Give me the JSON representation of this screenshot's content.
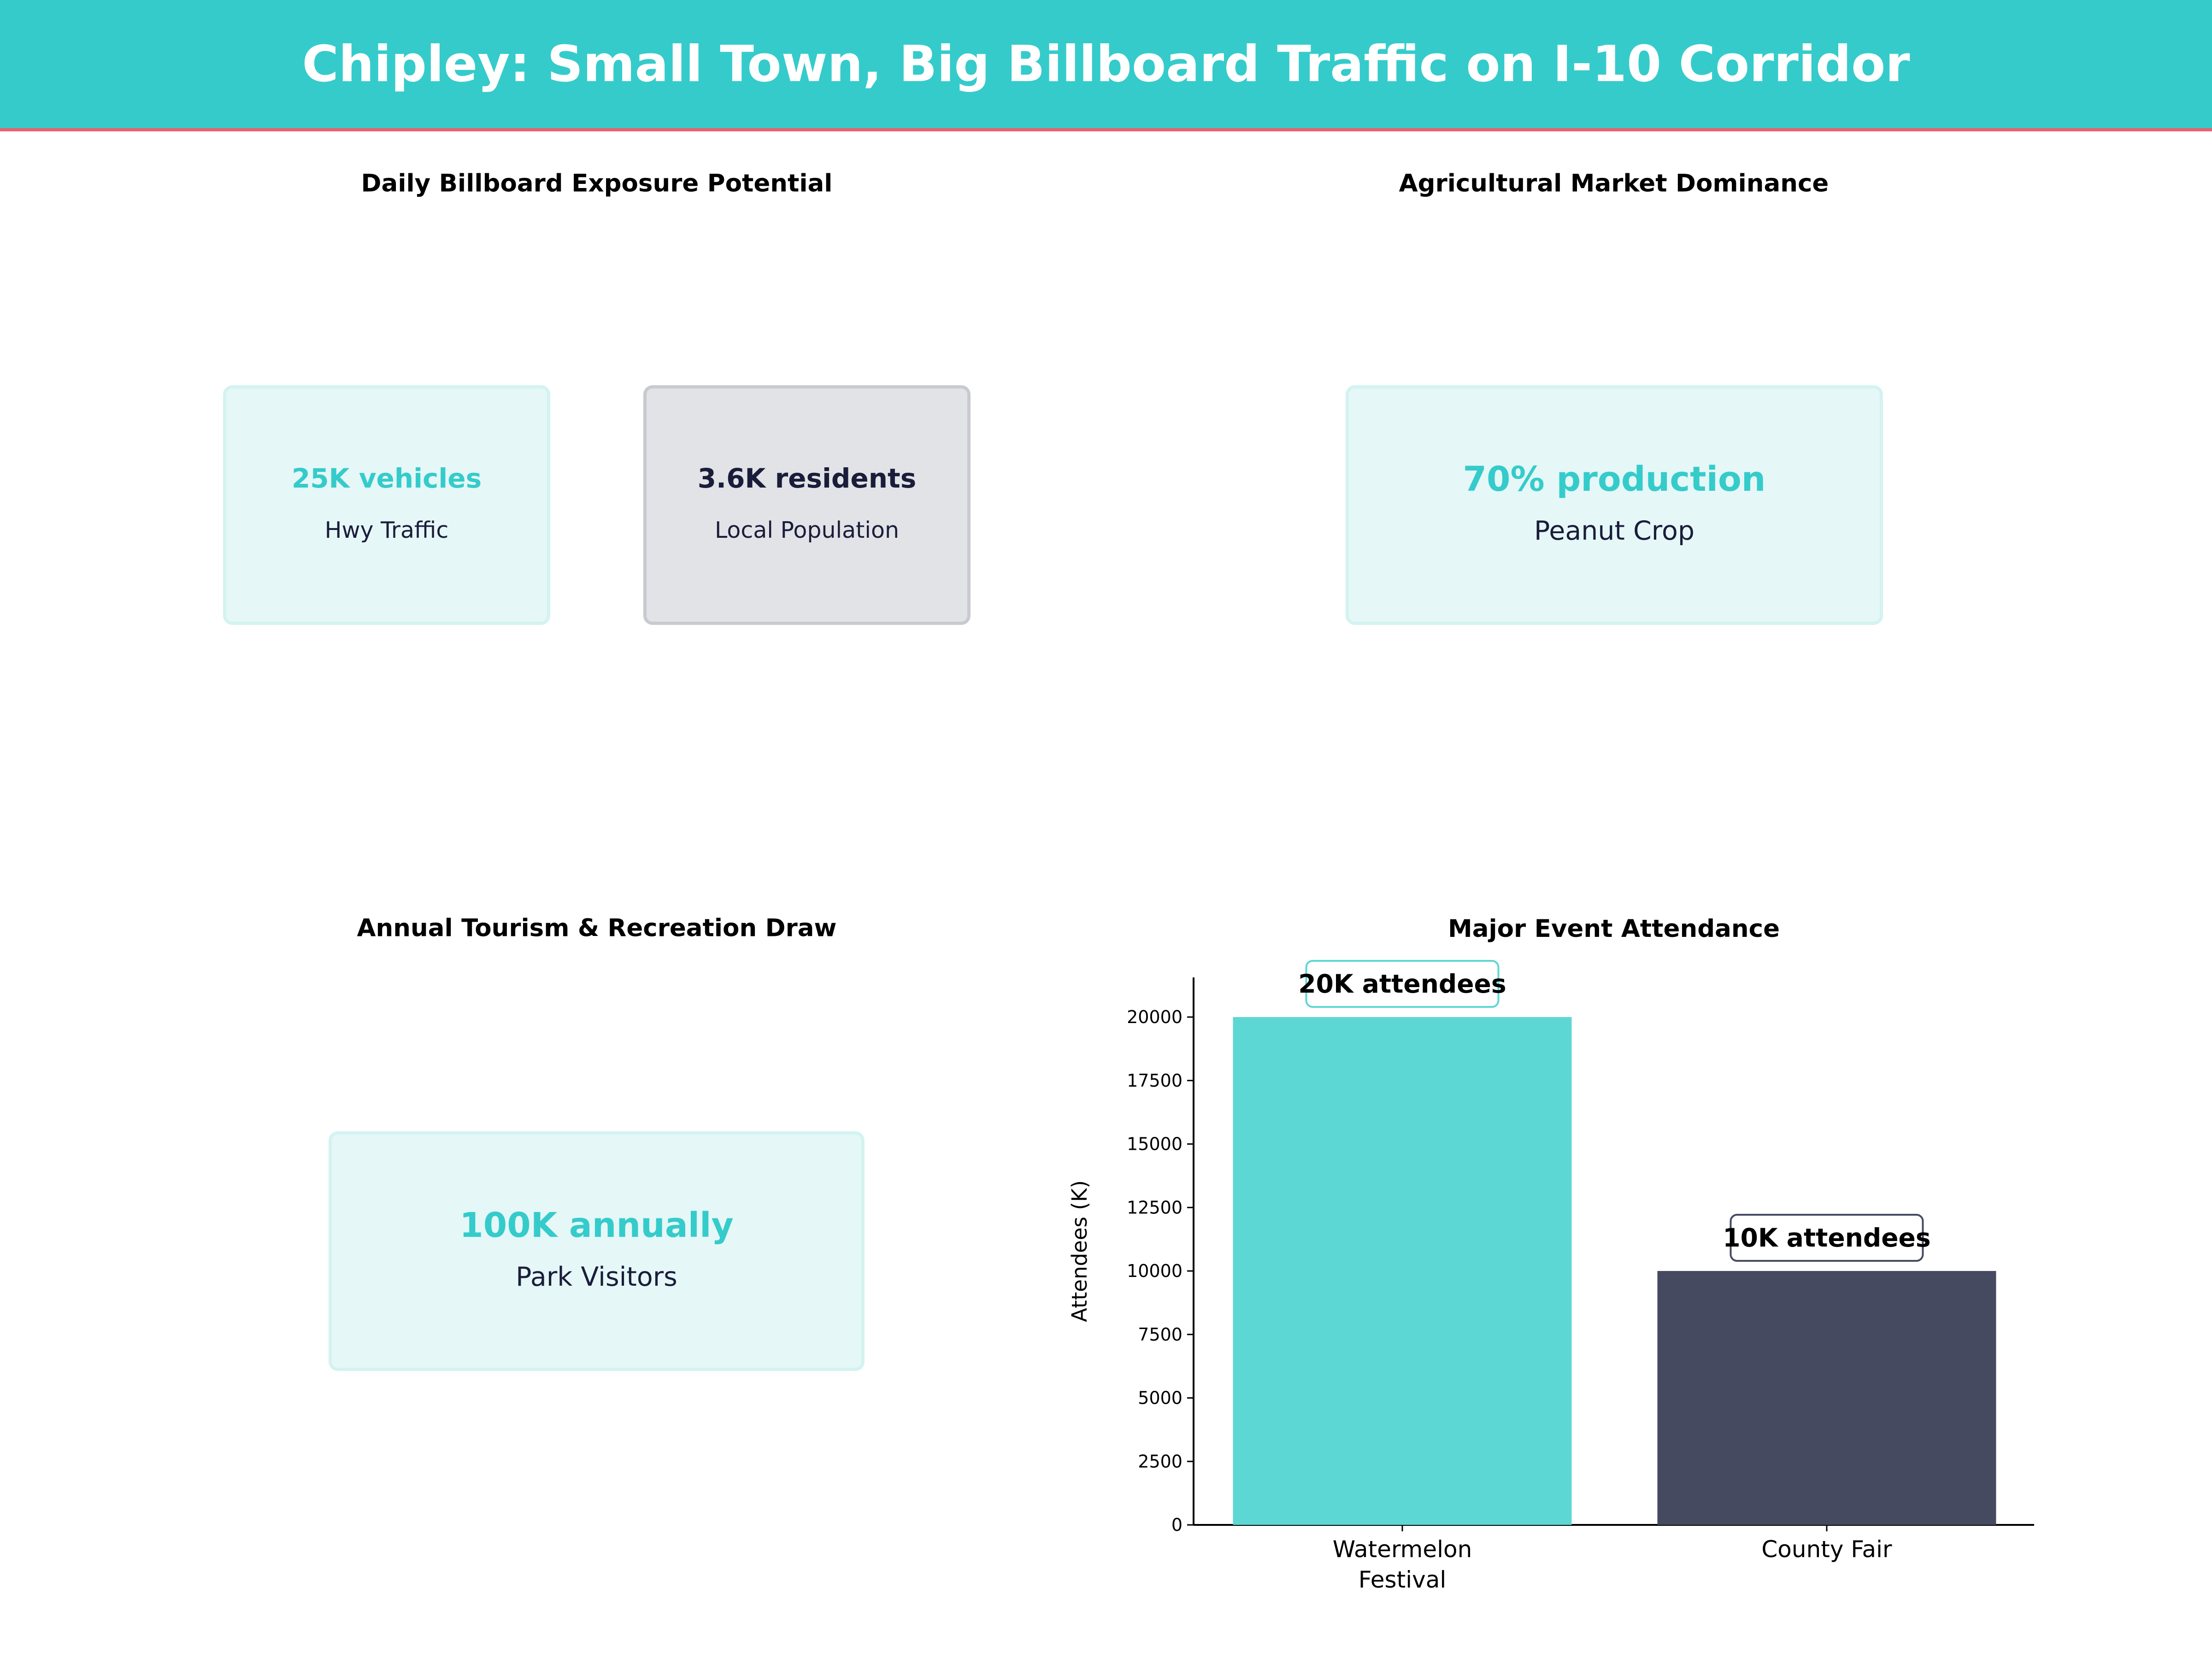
{
  "header": {
    "title": "Chipley: Small Town, Big Billboard Traffic on I-10 Corridor"
  },
  "colors": {
    "header_bg": "#35cbcb",
    "header_line": "#e8626e",
    "teal": "#35cbcb",
    "navy": "#1a1d3a",
    "bar_teal": "#5dd7d4",
    "bar_navy": "#464a60"
  },
  "panels": {
    "exposure": {
      "title": "Daily Billboard Exposure Potential",
      "cards": [
        {
          "value": "25K vehicles",
          "label": "Hwy Traffic"
        },
        {
          "value": "3.6K residents",
          "label": "Local Population"
        }
      ]
    },
    "agriculture": {
      "title": "Agricultural Market Dominance",
      "card": {
        "value": "70% production",
        "label": "Peanut Crop"
      }
    },
    "tourism": {
      "title": "Annual Tourism & Recreation Draw",
      "card": {
        "value": "100K annually",
        "label": "Park Visitors"
      }
    }
  },
  "chart_data": {
    "type": "bar",
    "title": "Major Event Attendance",
    "categories": [
      "Watermelon\nFestival",
      "County Fair"
    ],
    "category_lines": [
      [
        "Watermelon",
        "Festival"
      ],
      [
        "County Fair"
      ]
    ],
    "values": [
      20000,
      10000
    ],
    "data_labels": [
      "20K attendees",
      "10K attendees"
    ],
    "colors": [
      "#5dd7d4",
      "#464a60"
    ],
    "label_border_colors": [
      "#5dd7d4",
      "#464a60"
    ],
    "xlabel": "",
    "ylabel": "Attendees (K)",
    "ylim": [
      0,
      21500
    ],
    "yticks": [
      0,
      2500,
      5000,
      7500,
      10000,
      12500,
      15000,
      17500,
      20000
    ],
    "grid": false
  }
}
